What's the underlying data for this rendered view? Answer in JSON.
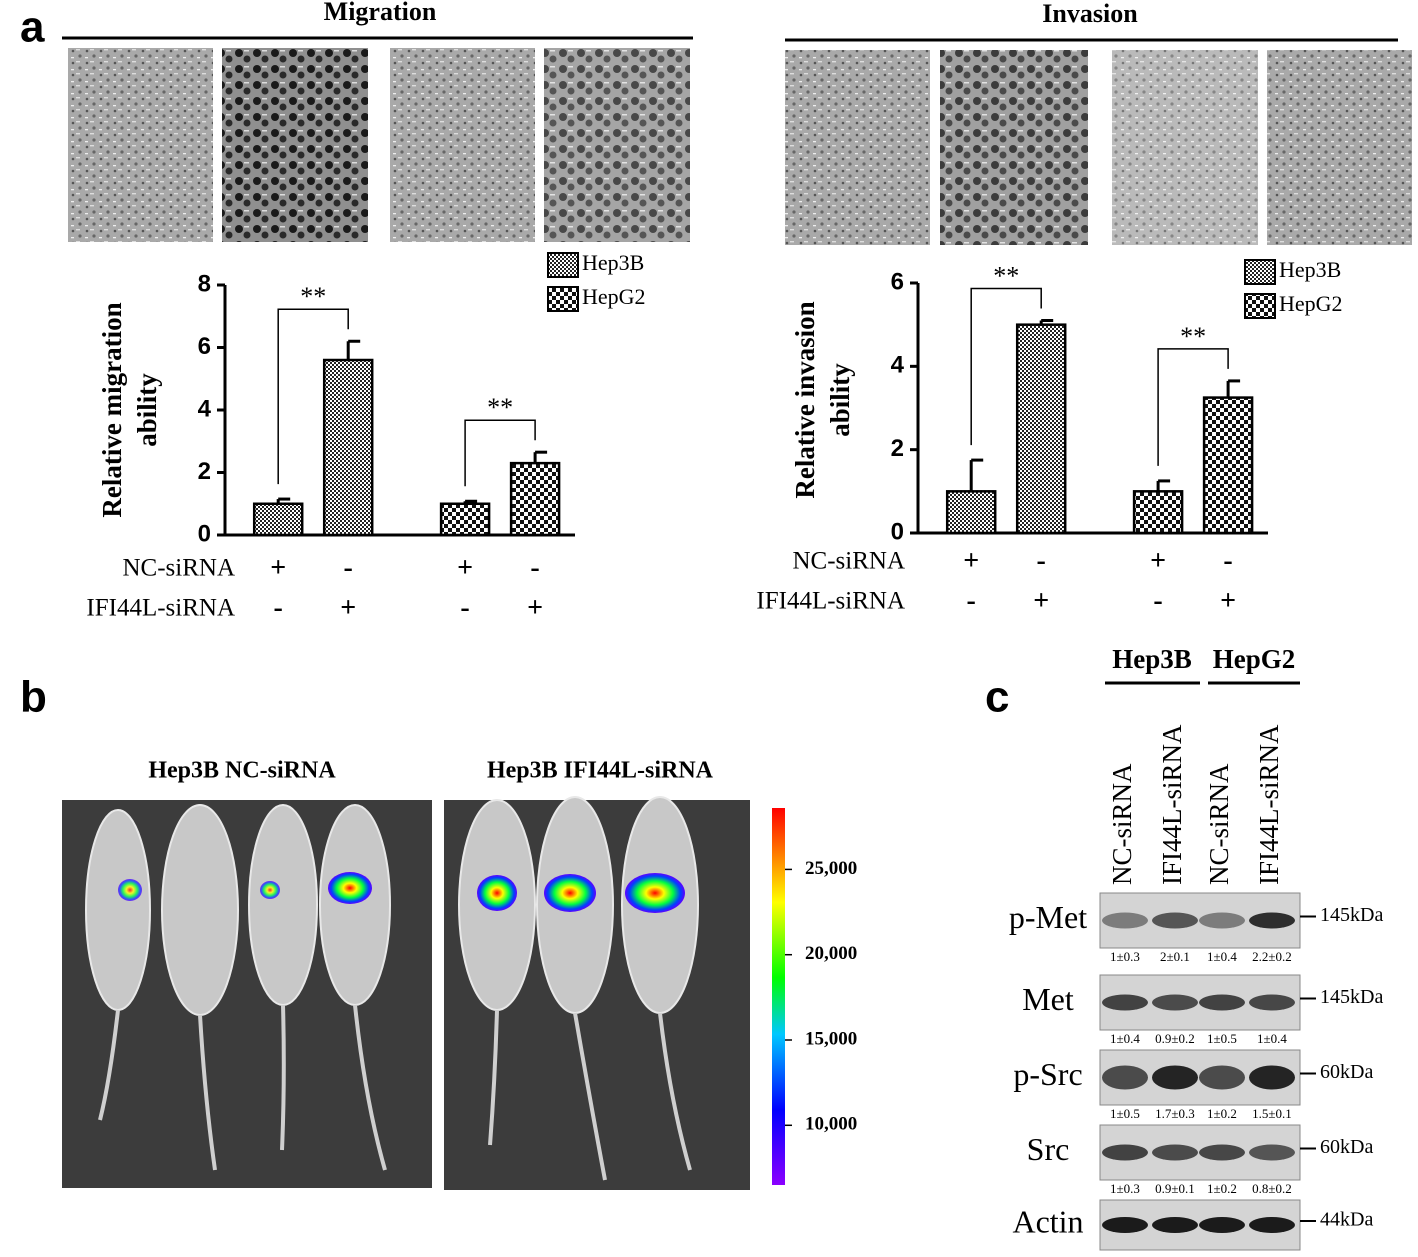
{
  "panel_labels": [
    "a",
    "b",
    "c"
  ],
  "chart_data": [
    {
      "type": "bar",
      "title": "Migration",
      "ylabel": [
        "Relative migration",
        "ability"
      ],
      "categories": [
        null,
        null,
        null,
        null
      ],
      "ylim": [
        0,
        8
      ],
      "yticks": [
        0,
        2,
        4,
        6,
        8
      ],
      "series": [
        {
          "name": "Hep3B",
          "values": [
            1,
            5.6,
            null,
            null
          ],
          "errors": [
            0.15,
            0.6,
            null,
            null
          ],
          "significance": "**"
        },
        {
          "name": "HepG2",
          "values": [
            null,
            null,
            1,
            2.3
          ],
          "errors": [
            null,
            null,
            0.08,
            0.35
          ],
          "significance": "**"
        }
      ],
      "conditions": [
        {
          "name": "NC-siRNA",
          "values": [
            "+",
            "-",
            "+",
            "-"
          ]
        },
        {
          "name": "IFI44L-siRNA",
          "values": [
            "-",
            "+",
            "-",
            "+"
          ]
        }
      ]
    },
    {
      "type": "bar",
      "title": "Invasion",
      "ylabel": [
        "Relative invasion",
        "ability"
      ],
      "categories": [
        null,
        null,
        null,
        null
      ],
      "ylim": [
        0,
        6
      ],
      "yticks": [
        0,
        2,
        4,
        6
      ],
      "series": [
        {
          "name": "Hep3B",
          "values": [
            1,
            5.0,
            null,
            null
          ],
          "errors": [
            0.75,
            0.1,
            null,
            null
          ],
          "significance": "**"
        },
        {
          "name": "HepG2",
          "values": [
            null,
            null,
            1,
            3.25
          ],
          "errors": [
            null,
            null,
            0.25,
            0.4
          ],
          "significance": "**"
        }
      ],
      "conditions": [
        {
          "name": "NC-siRNA",
          "values": [
            "+",
            "-",
            "+",
            "-"
          ]
        },
        {
          "name": "IFI44L-siRNA",
          "values": [
            "-",
            "+",
            "-",
            "+"
          ]
        }
      ]
    }
  ],
  "imaging": {
    "groups": [
      "Hep3B NC-siRNA",
      "Hep3B IFI44L-siRNA"
    ],
    "colorbar": {
      "lim": [
        6500,
        28600
      ],
      "ticks": [
        {
          "value": 10000,
          "label": "10,000"
        },
        {
          "value": 15000,
          "label": "15,000"
        },
        {
          "value": 20000,
          "label": "20,000"
        },
        {
          "value": 25000,
          "label": "25,000"
        }
      ]
    }
  },
  "western": {
    "cell_lines": [
      "Hep3B",
      "HepG2"
    ],
    "lanes": [
      "NC-siRNA",
      "IFI44L-siRNA",
      "NC-siRNA",
      "IFI44L-siRNA"
    ],
    "blots": [
      {
        "name": "p-Met",
        "size": "145kDa",
        "quant": [
          "1±0.3",
          "2±0.1",
          "1±0.4",
          "2.2±0.2"
        ]
      },
      {
        "name": "Met",
        "size": "145kDa",
        "quant": [
          "1±0.4",
          "0.9±0.2",
          "1±0.5",
          "1±0.4"
        ]
      },
      {
        "name": "p-Src",
        "size": "60kDa",
        "quant": [
          "1±0.5",
          "1.7±0.3",
          "1±0.2",
          "1.5±0.1"
        ]
      },
      {
        "name": "Src",
        "size": "60kDa",
        "quant": [
          "1±0.3",
          "0.9±0.1",
          "1±0.2",
          "0.8±0.2"
        ]
      },
      {
        "name": "Actin",
        "size": "44kDa"
      }
    ]
  }
}
